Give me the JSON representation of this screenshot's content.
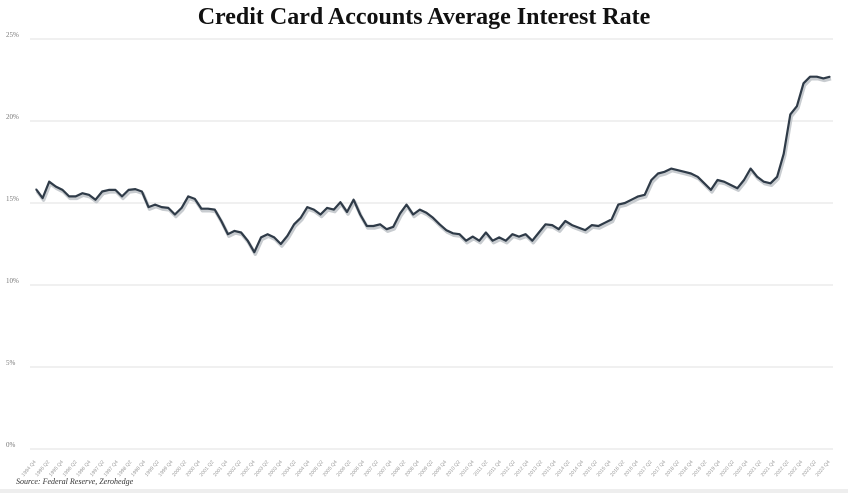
{
  "chart_data": {
    "type": "line",
    "title": "Credit Card Accounts Average Interest Rate",
    "source": "Source: Federal Reserve, Zerohedge",
    "xlabel": "",
    "ylabel": "",
    "ylim": [
      0,
      25
    ],
    "y_ticks": [
      "0%",
      "5%",
      "10%",
      "15%",
      "20%",
      "25%"
    ],
    "x_ticks": [
      "1994 Q4",
      "1995 Q2",
      "1995 Q4",
      "1996 Q2",
      "1996 Q4",
      "1997 Q2",
      "1997 Q4",
      "1998 Q2",
      "1998 Q4",
      "1999 Q2",
      "1999 Q4",
      "2000 Q2",
      "2000 Q4",
      "2001 Q2",
      "2001 Q4",
      "2002 Q2",
      "2002 Q4",
      "2003 Q2",
      "2003 Q4",
      "2004 Q2",
      "2004 Q4",
      "2005 Q2",
      "2005 Q4",
      "2006 Q2",
      "2006 Q4",
      "2007 Q2",
      "2007 Q4",
      "2008 Q2",
      "2008 Q4",
      "2009 Q2",
      "2009 Q4",
      "2010 Q2",
      "2010 Q4",
      "2011 Q2",
      "2011 Q4",
      "2012 Q2",
      "2012 Q4",
      "2013 Q2",
      "2013 Q4",
      "2014 Q2",
      "2014 Q4",
      "2015 Q2",
      "2015 Q4",
      "2016 Q2",
      "2016 Q4",
      "2017 Q2",
      "2017 Q4",
      "2018 Q2",
      "2018 Q4",
      "2019 Q2",
      "2019 Q4",
      "2020 Q2",
      "2020 Q4",
      "2021 Q2",
      "2021 Q4",
      "2022 Q2",
      "2022 Q4",
      "2023 Q2",
      "2023 Q4"
    ],
    "grid": true,
    "line_color": "#2f3b48",
    "values": [
      15.85,
      15.3,
      16.3,
      16.0,
      15.8,
      15.4,
      15.4,
      15.6,
      15.5,
      15.2,
      15.7,
      15.8,
      15.8,
      15.4,
      15.8,
      15.85,
      15.7,
      14.75,
      14.9,
      14.75,
      14.7,
      14.3,
      14.7,
      15.4,
      15.25,
      14.65,
      14.65,
      14.6,
      13.9,
      13.1,
      13.3,
      13.2,
      12.7,
      12.0,
      12.9,
      13.1,
      12.9,
      12.5,
      13.0,
      13.7,
      14.1,
      14.75,
      14.6,
      14.3,
      14.7,
      14.6,
      15.05,
      14.45,
      15.2,
      14.3,
      13.6,
      13.6,
      13.7,
      13.4,
      13.55,
      14.35,
      14.9,
      14.3,
      14.6,
      14.4,
      14.1,
      13.7,
      13.35,
      13.15,
      13.1,
      12.7,
      12.95,
      12.7,
      13.2,
      12.7,
      12.9,
      12.7,
      13.1,
      12.95,
      13.1,
      12.7,
      13.2,
      13.7,
      13.65,
      13.4,
      13.9,
      13.65,
      13.5,
      13.35,
      13.65,
      13.6,
      13.8,
      14.0,
      14.9,
      15.0,
      15.2,
      15.4,
      15.5,
      16.4,
      16.8,
      16.9,
      17.1,
      17.0,
      16.9,
      16.8,
      16.6,
      16.2,
      15.8,
      16.4,
      16.3,
      16.1,
      15.9,
      16.4,
      17.1,
      16.6,
      16.3,
      16.2,
      16.6,
      18.0,
      20.4,
      20.9,
      22.3,
      22.7,
      22.7,
      22.6,
      22.7
    ]
  }
}
